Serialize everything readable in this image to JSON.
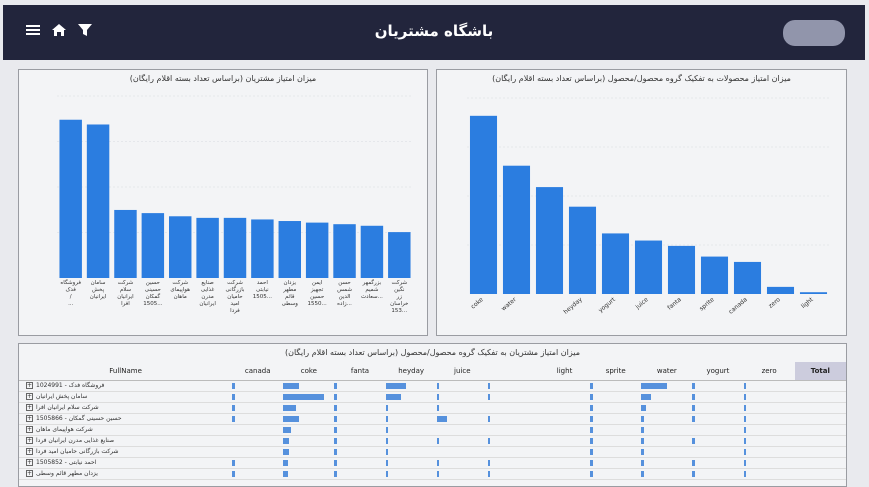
{
  "header": {
    "title": "باشگاه مشتریان"
  },
  "left_chart": {
    "title": "میزان امتیاز مشتریان (براساس تعداد بسته اقلام رایگان)"
  },
  "right_chart": {
    "title": "میزان امتیاز محصولات به تفکیک گروه محصول/محصول (براساس تعداد بسته اقلام رایگان)"
  },
  "table": {
    "title": "میزان امتیاز مشتریان به تفکیک گروه محصول/محصول (براساس تعداد بسته اقلام رایگان)",
    "columns": [
      "FullName",
      "canada",
      "coke",
      "fanta",
      "heyday",
      "juice",
      "",
      "light",
      "sprite",
      "water",
      "yogurt",
      "zero",
      "Total"
    ],
    "rows": [
      {
        "name": "فروشگاه فدک - 1024991",
        "cells": [
          0.05,
          0.3,
          0.05,
          0.4,
          0.05,
          0.05,
          0,
          0.05,
          0.5,
          0.05,
          0.05,
          0
        ]
      },
      {
        "name": "سامان پخش ایرانیان",
        "cells": [
          0.05,
          0.8,
          0.05,
          0.3,
          0.05,
          0.05,
          0,
          0.05,
          0.2,
          0.05,
          0.05,
          0
        ]
      },
      {
        "name": "شرکت سلام ایرانیان افرا",
        "cells": [
          0.05,
          0.25,
          0.05,
          0.05,
          0.05,
          0,
          0,
          0.05,
          0.1,
          0.05,
          0.05,
          0
        ]
      },
      {
        "name": "حسین حسینی گمکان - 1505866",
        "cells": [
          0.05,
          0.3,
          0.05,
          0.05,
          0.2,
          0.05,
          0,
          0.05,
          0.05,
          0.05,
          0.05,
          0
        ]
      },
      {
        "name": "شرکت هواپیمای ماهان",
        "cells": [
          0,
          0.15,
          0.05,
          0.05,
          0,
          0,
          0,
          0.05,
          0.05,
          0,
          0.05,
          0
        ]
      },
      {
        "name": "صنایع غذایی مدرن ایرانیان فردا",
        "cells": [
          0,
          0.12,
          0.05,
          0.05,
          0.05,
          0.05,
          0,
          0.05,
          0.05,
          0.05,
          0.05,
          0
        ]
      },
      {
        "name": "شرکت بازرگانی حامیان امید فردا",
        "cells": [
          0,
          0.12,
          0.05,
          0.05,
          0,
          0,
          0,
          0.05,
          0.05,
          0,
          0.05,
          0
        ]
      },
      {
        "name": "احمد نیابتی - 1505852",
        "cells": [
          0.05,
          0.1,
          0.05,
          0.05,
          0.05,
          0.05,
          0,
          0.05,
          0.05,
          0.05,
          0.05,
          0
        ]
      },
      {
        "name": "یزدان مطهر قائم وسطی",
        "cells": [
          0.05,
          0.1,
          0.05,
          0.05,
          0.05,
          0.05,
          0,
          0.05,
          0.05,
          0.05,
          0.05,
          0
        ]
      }
    ]
  },
  "chart_data": [
    {
      "type": "bar",
      "title": "میزان امتیاز مشتریان (براساس تعداد بسته اقلام رایگان)",
      "categories": [
        "فروشگاه فدک / ...",
        "سامان پخش ایرانیان",
        "شرکت سلام ایرانیان افرا",
        "حسین حسینی گمکان 1505...",
        "شرکت هواپیمای ماهان",
        "صنایع غذایی مدرن ایرانیان",
        "شرکت بازرگانی حامیان امید فردا",
        "احمد نیابتی 1505...",
        "یزدان مطهر قائم وسطی",
        "ایمن تجهیز حسین 1550...",
        "حسن شمس الدین زاده...",
        "بزرگمهر شمیم سعادت...",
        "شرکت نگین زر خراسان 153..."
      ],
      "values": [
        100,
        97,
        43,
        41,
        39,
        38,
        38,
        37,
        36,
        35,
        34,
        33,
        29
      ],
      "ylim": [
        0,
        115
      ]
    },
    {
      "type": "bar",
      "title": "میزان امتیاز محصولات به تفکیک گروه محصول/محصول (براساس تعداد بسته اقلام رایگان)",
      "categories": [
        "coke",
        "water",
        "",
        "heyday",
        "yogurt",
        "juice",
        "fanta",
        "sprite",
        "canada",
        "zero",
        "light"
      ],
      "values": [
        100,
        72,
        60,
        49,
        34,
        30,
        27,
        21,
        18,
        4,
        1
      ],
      "ylim": [
        0,
        110
      ]
    }
  ],
  "colors": {
    "header_bg": "#22253c",
    "bar": "#2b7de0",
    "panel_bg": "#f3f4f6"
  }
}
